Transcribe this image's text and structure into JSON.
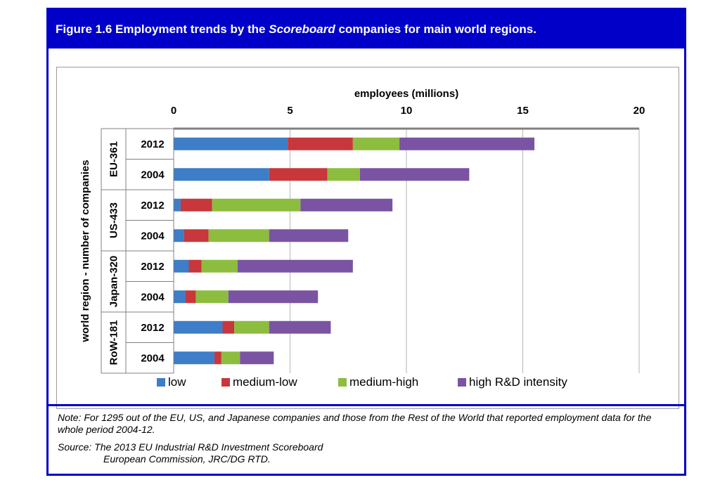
{
  "figure": {
    "title_prefix": "Figure 1.6  Employment trends by the ",
    "title_italic": "Scoreboard",
    "title_suffix": " companies for main world regions."
  },
  "chart_data": {
    "type": "bar",
    "orientation": "horizontal",
    "stacked": true,
    "xlabel": "employees (millions)",
    "ylabel": "world region - number of companies",
    "xlim": [
      0,
      20
    ],
    "x_ticks": [
      0,
      5,
      10,
      15,
      20
    ],
    "grid": "vertical",
    "legend_position": "bottom",
    "groups": [
      {
        "label": "EU-361",
        "rows": [
          "2012",
          "2004"
        ]
      },
      {
        "label": "US-433",
        "rows": [
          "2012",
          "2004"
        ]
      },
      {
        "label": "Japan-320",
        "rows": [
          "2012",
          "2004"
        ]
      },
      {
        "label": "RoW-181",
        "rows": [
          "2012",
          "2004"
        ]
      }
    ],
    "categories": [
      "EU-361 2012",
      "EU-361 2004",
      "US-433 2012",
      "US-433 2004",
      "Japan-320 2012",
      "Japan-320 2004",
      "RoW-181 2012",
      "RoW-181 2004"
    ],
    "series": [
      {
        "name": "low",
        "color": "#3e7dc7",
        "values": [
          4.9,
          4.1,
          0.3,
          0.45,
          0.65,
          0.5,
          2.1,
          1.75
        ]
      },
      {
        "name": "medium-low",
        "color": "#c8373b",
        "values": [
          2.8,
          2.5,
          1.35,
          1.05,
          0.55,
          0.45,
          0.5,
          0.3
        ]
      },
      {
        "name": "medium-high",
        "color": "#8cbd3f",
        "values": [
          2.0,
          1.4,
          3.8,
          2.6,
          1.55,
          1.4,
          1.5,
          0.8
        ]
      },
      {
        "name": "high R&D intensity",
        "color": "#7a54a2",
        "values": [
          5.8,
          4.7,
          3.95,
          3.4,
          4.95,
          3.85,
          2.65,
          1.45
        ]
      }
    ]
  },
  "notes": {
    "note": "Note: For 1295 out of the EU, US, and Japanese companies and those from the Rest of the World that reported employment data for the whole period 2004-12.",
    "source_line1": "Source: The 2013 EU Industrial R&D Investment Scoreboard",
    "source_line2": "European Commission, JRC/DG RTD."
  }
}
